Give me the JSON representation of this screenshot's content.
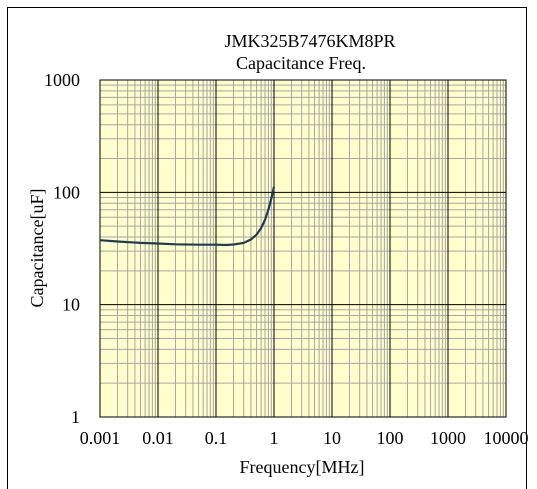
{
  "chart_data": {
    "type": "line",
    "title": "JMK325B7476KM8PR",
    "subtitle": "Capacitance Freq.",
    "xlabel": "Frequency[MHz]",
    "ylabel": "Capacitance[uF]",
    "x_scale": "log",
    "y_scale": "log",
    "xlim": [
      0.001,
      10000
    ],
    "ylim": [
      1,
      1000
    ],
    "x_ticks": [
      0.001,
      0.01,
      0.1,
      1,
      10,
      100,
      1000,
      10000
    ],
    "x_tick_labels": [
      "0.001",
      "0.01",
      "0.1",
      "1",
      "10",
      "100",
      "1000",
      "10000"
    ],
    "y_ticks": [
      1,
      10,
      100,
      1000
    ],
    "y_tick_labels": [
      "1",
      "10",
      "100",
      "1000"
    ],
    "grid": true,
    "colors": {
      "plot_background": "#ffffcc",
      "grid": "#a6a6a6",
      "line": "#1f3b57"
    },
    "series": [
      {
        "x": [
          0.001,
          0.002,
          0.005,
          0.01,
          0.02,
          0.05,
          0.1,
          0.15,
          0.2,
          0.3,
          0.4,
          0.5,
          0.6,
          0.7,
          0.8,
          0.9,
          1.0
        ],
        "values": [
          37.5,
          36.5,
          35.5,
          35,
          34.5,
          34.2,
          34.2,
          34.0,
          34.3,
          35.5,
          38,
          42,
          48,
          57,
          70,
          88,
          112
        ]
      }
    ]
  }
}
